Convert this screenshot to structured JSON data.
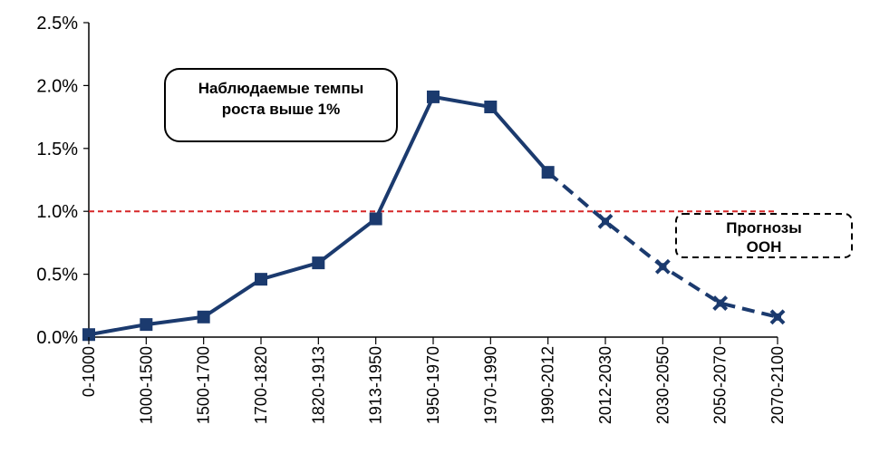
{
  "chart_data": {
    "type": "line",
    "categories": [
      "0-1000",
      "1000-1500",
      "1500-1700",
      "1700-1820",
      "1820-1913",
      "1913-1950",
      "1950-1970",
      "1970-1990",
      "1990-2012",
      "2012-2030",
      "2030-2050",
      "2050-2070",
      "2070-2100"
    ],
    "series": [
      {
        "values": [
          0.02,
          0.1,
          0.16,
          0.46,
          0.59,
          0.94,
          1.91,
          1.83,
          1.31,
          0.92,
          0.56,
          0.27,
          0.16
        ],
        "color": "#1b3a6e",
        "observed_points": 9
      }
    ],
    "ylim": [
      0,
      2.5
    ],
    "yticks": [
      "0.0%",
      "0.5%",
      "1.0%",
      "1.5%",
      "2.0%",
      "2.5%"
    ],
    "ytick_values": [
      0,
      0.5,
      1.0,
      1.5,
      2.0,
      2.5
    ],
    "reference_line": {
      "value": 1.0,
      "color": "#d62728",
      "style": "dashed"
    },
    "annotations": [
      {
        "lines": [
          "Наблюдаемые темпы",
          "роста выше 1%"
        ],
        "border": "solid"
      },
      {
        "lines": [
          "Прогнозы",
          "ООН"
        ],
        "border": "dashed"
      }
    ],
    "grid": false,
    "title": "",
    "xlabel": "",
    "ylabel": ""
  }
}
